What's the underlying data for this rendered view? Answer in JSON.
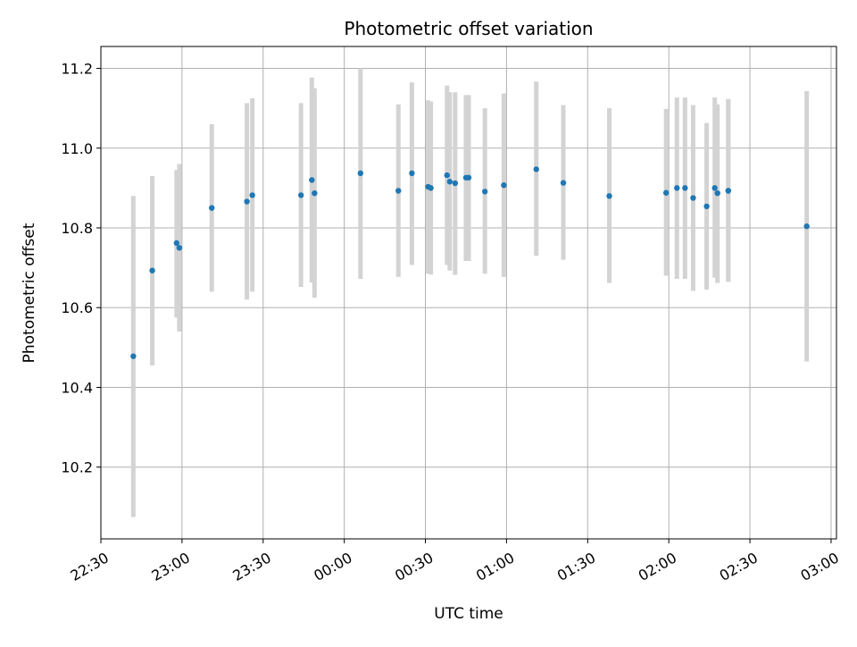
{
  "chart_data": {
    "type": "scatter",
    "title": "Photometric offset variation",
    "xlabel": "UTC time",
    "ylabel": "Photometric offset",
    "x_unit": "UTC time (HH:MM), 22:30 to 03:00",
    "xlim": [
      "22:30",
      "03:02"
    ],
    "ylim": [
      10.02,
      11.255
    ],
    "x_ticks": [
      "22:30",
      "23:00",
      "23:30",
      "00:00",
      "00:30",
      "01:00",
      "01:30",
      "02:00",
      "02:30",
      "03:00"
    ],
    "y_ticks": [
      10.2,
      10.4,
      10.6,
      10.8,
      11.0,
      11.2
    ],
    "y_tick_labels": [
      "10.2",
      "10.4",
      "10.6",
      "10.8",
      "11.0",
      "11.2"
    ],
    "grid": true,
    "colors": {
      "point": "#1f77b4",
      "errorbar": "#d3d3d3",
      "grid": "#b0b0b0"
    },
    "points": [
      {
        "time": "22:42",
        "y": 10.478,
        "err_low": 10.075,
        "err_high": 10.88
      },
      {
        "time": "22:49",
        "y": 10.693,
        "err_low": 10.455,
        "err_high": 10.93
      },
      {
        "time": "22:58",
        "y": 10.762,
        "err_low": 10.575,
        "err_high": 10.945
      },
      {
        "time": "22:59",
        "y": 10.75,
        "err_low": 10.54,
        "err_high": 10.96
      },
      {
        "time": "23:11",
        "y": 10.85,
        "err_low": 10.64,
        "err_high": 11.06
      },
      {
        "time": "23:24",
        "y": 10.866,
        "err_low": 10.62,
        "err_high": 11.113
      },
      {
        "time": "23:26",
        "y": 10.882,
        "err_low": 10.64,
        "err_high": 11.125
      },
      {
        "time": "23:44",
        "y": 10.882,
        "err_low": 10.652,
        "err_high": 11.113
      },
      {
        "time": "23:48",
        "y": 10.92,
        "err_low": 10.663,
        "err_high": 11.177
      },
      {
        "time": "23:49",
        "y": 10.887,
        "err_low": 10.625,
        "err_high": 11.15
      },
      {
        "time": "00:06",
        "y": 10.937,
        "err_low": 10.672,
        "err_high": 11.2
      },
      {
        "time": "00:20",
        "y": 10.893,
        "err_low": 10.677,
        "err_high": 11.11
      },
      {
        "time": "00:25",
        "y": 10.937,
        "err_low": 10.707,
        "err_high": 11.165
      },
      {
        "time": "00:31",
        "y": 10.903,
        "err_low": 10.685,
        "err_high": 11.12
      },
      {
        "time": "00:32",
        "y": 10.9,
        "err_low": 10.683,
        "err_high": 11.117
      },
      {
        "time": "00:38",
        "y": 10.932,
        "err_low": 10.707,
        "err_high": 11.157
      },
      {
        "time": "00:39",
        "y": 10.916,
        "err_low": 10.693,
        "err_high": 11.14
      },
      {
        "time": "00:41",
        "y": 10.912,
        "err_low": 10.682,
        "err_high": 11.14
      },
      {
        "time": "00:45",
        "y": 10.926,
        "err_low": 10.717,
        "err_high": 11.133
      },
      {
        "time": "00:46",
        "y": 10.926,
        "err_low": 10.717,
        "err_high": 11.133
      },
      {
        "time": "00:52",
        "y": 10.891,
        "err_low": 10.685,
        "err_high": 11.1
      },
      {
        "time": "00:59",
        "y": 10.907,
        "err_low": 10.677,
        "err_high": 11.137
      },
      {
        "time": "01:11",
        "y": 10.947,
        "err_low": 10.73,
        "err_high": 11.167
      },
      {
        "time": "01:21",
        "y": 10.913,
        "err_low": 10.72,
        "err_high": 11.108
      },
      {
        "time": "01:38",
        "y": 10.88,
        "err_low": 10.662,
        "err_high": 11.1
      },
      {
        "time": "01:59",
        "y": 10.888,
        "err_low": 10.68,
        "err_high": 11.098
      },
      {
        "time": "02:03",
        "y": 10.9,
        "err_low": 10.672,
        "err_high": 11.127
      },
      {
        "time": "02:06",
        "y": 10.9,
        "err_low": 10.672,
        "err_high": 11.127
      },
      {
        "time": "02:09",
        "y": 10.875,
        "err_low": 10.642,
        "err_high": 11.108
      },
      {
        "time": "02:14",
        "y": 10.854,
        "err_low": 10.645,
        "err_high": 11.063
      },
      {
        "time": "02:17",
        "y": 10.9,
        "err_low": 10.675,
        "err_high": 11.127
      },
      {
        "time": "02:18",
        "y": 10.887,
        "err_low": 10.662,
        "err_high": 11.11
      },
      {
        "time": "02:22",
        "y": 10.893,
        "err_low": 10.665,
        "err_high": 11.123
      },
      {
        "time": "02:22",
        "y": 10.893,
        "err_low": 10.665,
        "err_high": 11.123
      },
      {
        "time": "02:51",
        "y": 10.804,
        "err_low": 10.465,
        "err_high": 11.143
      }
    ]
  }
}
